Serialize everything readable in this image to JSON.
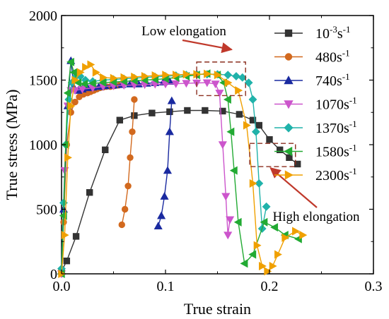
{
  "chart_data": {
    "type": "line",
    "title": "",
    "xlabel": "True strain",
    "ylabel": "True stress (MPa)",
    "xlim": [
      0,
      0.3
    ],
    "ylim": [
      0,
      2000
    ],
    "xticks": [
      "0.0",
      "0.1",
      "0.2",
      "0.3"
    ],
    "yticks": [
      "0",
      "500",
      "1000",
      "1500",
      "2000"
    ],
    "grid": false,
    "legend_position": "top-right",
    "annotations": [
      {
        "text": "Low elongation",
        "box": {
          "x": [
            0.13,
            0.177
          ],
          "y": [
            1380,
            1640
          ]
        },
        "arrow_to": [
          0.15,
          1660
        ]
      },
      {
        "text": "High elongation",
        "box": {
          "x": [
            0.181,
            0.225
          ],
          "y": [
            830,
            1010
          ]
        },
        "arrow_from": [
          0.205,
          800
        ]
      }
    ],
    "series": [
      {
        "name": "10⁻³s⁻¹",
        "label_main": "10",
        "label_sup1": "-3",
        "label_mid": "s",
        "label_sup2": "-1",
        "color": "#333333",
        "marker": "square",
        "x": [
          0.0,
          0.005,
          0.014,
          0.027,
          0.042,
          0.056,
          0.07,
          0.087,
          0.104,
          0.121,
          0.138,
          0.155,
          0.171,
          0.184,
          0.19,
          0.2,
          0.21,
          0.219,
          0.227
        ],
        "y": [
          20,
          100,
          290,
          630,
          960,
          1190,
          1225,
          1245,
          1255,
          1265,
          1265,
          1260,
          1235,
          1190,
          1150,
          1040,
          960,
          900,
          850
        ]
      },
      {
        "name": "480s⁻¹",
        "label_main": "480",
        "label_mid": "s",
        "label_sup2": "-1",
        "color": "#D2691E",
        "marker": "circle",
        "x": [
          0.0,
          0.002,
          0.005,
          0.009,
          0.013,
          0.017,
          0.021,
          0.025,
          0.028,
          0.031,
          0.034,
          0.037,
          0.04,
          0.043,
          0.047,
          0.051,
          0.055,
          0.058,
          0.061,
          0.064,
          0.066,
          0.068,
          0.07
        ],
        "y": [
          0,
          400,
          1000,
          1250,
          1330,
          1370,
          1390,
          1400,
          1410,
          1420,
          1430,
          1440,
          1445,
          1450,
          1450,
          1455,
          1460,
          380,
          500,
          680,
          900,
          1100,
          1350
        ],
        "break_after": 16
      },
      {
        "name": "740s⁻¹",
        "label_main": "740",
        "label_mid": "s",
        "label_sup2": "-1",
        "color": "#1A2AA0",
        "marker": "triangle-up",
        "x": [
          0.0,
          0.002,
          0.006,
          0.009,
          0.012,
          0.016,
          0.02,
          0.025,
          0.03,
          0.036,
          0.042,
          0.05,
          0.058,
          0.066,
          0.074,
          0.082,
          0.09,
          0.098,
          0.104,
          0.093,
          0.096,
          0.099,
          0.102,
          0.104,
          0.106
        ],
        "y": [
          20,
          500,
          1300,
          1650,
          1440,
          1420,
          1430,
          1440,
          1445,
          1450,
          1455,
          1460,
          1465,
          1470,
          1470,
          1475,
          1480,
          1485,
          1490,
          370,
          450,
          600,
          800,
          1100,
          1340
        ],
        "break_after": 18
      },
      {
        "name": "1070s⁻¹",
        "label_main": "1070",
        "label_mid": "s",
        "label_sup2": "-1",
        "color": "#CC55CC",
        "marker": "triangle-down",
        "x": [
          0.0,
          0.003,
          0.006,
          0.009,
          0.013,
          0.02,
          0.03,
          0.04,
          0.05,
          0.06,
          0.07,
          0.08,
          0.09,
          0.1,
          0.11,
          0.12,
          0.13,
          0.14,
          0.148,
          0.152,
          0.155,
          0.158,
          0.16,
          0.162
        ],
        "y": [
          0,
          800,
          1300,
          1420,
          1420,
          1430,
          1440,
          1450,
          1455,
          1460,
          1462,
          1465,
          1468,
          1470,
          1472,
          1475,
          1478,
          1480,
          1470,
          1400,
          1000,
          600,
          300,
          420
        ],
        "markers_every": 1
      },
      {
        "name": "1370s⁻¹",
        "label_main": "1370",
        "label_mid": "s",
        "label_sup2": "-1",
        "color": "#20B2AA",
        "marker": "diamond",
        "x": [
          0.0,
          0.002,
          0.004,
          0.007,
          0.01,
          0.014,
          0.018,
          0.023,
          0.03,
          0.04,
          0.05,
          0.06,
          0.07,
          0.08,
          0.09,
          0.1,
          0.11,
          0.12,
          0.13,
          0.14,
          0.15,
          0.16,
          0.168,
          0.174,
          0.18,
          0.184,
          0.187,
          0.19,
          0.193,
          0.197
        ],
        "y": [
          40,
          550,
          1000,
          1350,
          1480,
          1530,
          1530,
          1500,
          1490,
          1500,
          1505,
          1510,
          1515,
          1520,
          1525,
          1530,
          1535,
          1540,
          1545,
          1545,
          1545,
          1540,
          1530,
          1520,
          1480,
          1350,
          1100,
          700,
          350,
          520
        ]
      },
      {
        "name": "1580s⁻¹",
        "label_main": "1580",
        "label_mid": "s",
        "label_sup2": "-1",
        "color": "#22AA33",
        "marker": "triangle-left",
        "x": [
          0.0,
          0.002,
          0.004,
          0.006,
          0.009,
          0.012,
          0.016,
          0.022,
          0.03,
          0.04,
          0.05,
          0.06,
          0.07,
          0.08,
          0.09,
          0.1,
          0.11,
          0.12,
          0.13,
          0.14,
          0.15,
          0.156,
          0.16,
          0.163,
          0.166,
          0.17,
          0.176,
          0.184,
          0.195,
          0.205,
          0.215,
          0.228
        ],
        "y": [
          0,
          450,
          1000,
          1400,
          1640,
          1560,
          1480,
          1470,
          1475,
          1480,
          1485,
          1490,
          1495,
          1500,
          1505,
          1510,
          1520,
          1530,
          1540,
          1550,
          1540,
          1480,
          1350,
          1100,
          800,
          400,
          80,
          150,
          400,
          360,
          300,
          270
        ]
      },
      {
        "name": "2300s⁻¹",
        "label_main": "2300",
        "label_mid": "s",
        "label_sup2": "-1",
        "color": "#F0A000",
        "marker": "triangle-right",
        "x": [
          0.0,
          0.003,
          0.006,
          0.009,
          0.013,
          0.018,
          0.023,
          0.028,
          0.033,
          0.04,
          0.05,
          0.06,
          0.07,
          0.08,
          0.09,
          0.1,
          0.11,
          0.12,
          0.13,
          0.14,
          0.15,
          0.16,
          0.17,
          0.178,
          0.184,
          0.188,
          0.193,
          0.198,
          0.203,
          0.208,
          0.215,
          0.225,
          0.232
        ],
        "y": [
          0,
          300,
          900,
          1300,
          1500,
          1560,
          1600,
          1620,
          1560,
          1520,
          1515,
          1520,
          1525,
          1530,
          1535,
          1540,
          1540,
          1545,
          1545,
          1548,
          1540,
          1480,
          1420,
          1150,
          700,
          220,
          60,
          20,
          60,
          150,
          280,
          330,
          300
        ]
      }
    ]
  }
}
